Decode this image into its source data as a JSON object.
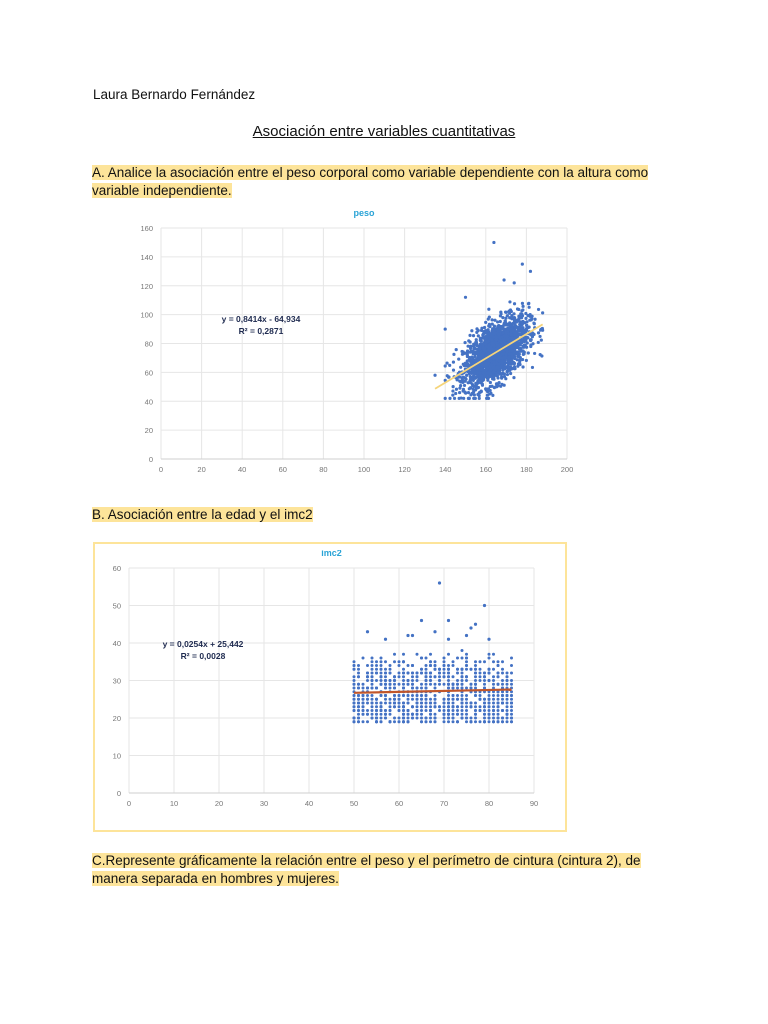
{
  "document": {
    "author": "Laura Bernardo Fernández",
    "title": "Asociación entre variables cuantitativas",
    "questions": {
      "a": "A. Analice la asociación entre el peso corporal como variable dependiente con la altura como variable independiente.",
      "b": "B. Asociación entre la edad y el imc2",
      "c": "C.Represente gráficamente la relación entre el peso y el perímetro de cintura (cintura 2), de manera separada en hombres y mujeres."
    }
  },
  "colors": {
    "highlight": "#fde49a",
    "point": "#4472c4",
    "trend_a": "#f5d47a",
    "trend_b": "#c0562b",
    "chart_title": "#29a3d6",
    "grid": "#e6e6e6",
    "equation": "#1f2b50"
  },
  "chart_data": [
    {
      "type": "scatter",
      "title": "peso",
      "xlabel": "",
      "ylabel": "",
      "xlim": [
        0,
        200
      ],
      "ylim": [
        0,
        160
      ],
      "x_ticks": [
        "0",
        "20",
        "40",
        "60",
        "80",
        "100",
        "120",
        "140",
        "160",
        "180",
        "200"
      ],
      "y_ticks": [
        "0",
        "20",
        "40",
        "60",
        "80",
        "100",
        "120",
        "140",
        "160"
      ],
      "grid": true,
      "legend": "none",
      "trendline": {
        "slope": 0.8414,
        "intercept": -64.934,
        "x_range": [
          135,
          188
        ],
        "equation": "y = 0,8414x - 64,934",
        "r2": "R² = 0,2871"
      },
      "point_cloud": {
        "x_center": 165,
        "x_sd": 8,
        "x_range": [
          135,
          188
        ],
        "y_noise_sd": 10,
        "y_range": [
          42,
          120
        ],
        "n": 1800
      },
      "outliers": [
        [
          164,
          150
        ],
        [
          178,
          135
        ],
        [
          182,
          130
        ],
        [
          169,
          124
        ],
        [
          174,
          122
        ],
        [
          135,
          58
        ],
        [
          140,
          90
        ],
        [
          150,
          112
        ]
      ]
    },
    {
      "type": "scatter",
      "title": "imc2",
      "xlabel": "",
      "ylabel": "",
      "xlim": [
        0,
        90
      ],
      "ylim": [
        0,
        60
      ],
      "x_ticks": [
        "0",
        "10",
        "20",
        "30",
        "40",
        "50",
        "60",
        "70",
        "80",
        "90"
      ],
      "y_ticks": [
        "0",
        "10",
        "20",
        "30",
        "40",
        "50",
        "60"
      ],
      "grid": true,
      "legend": "none",
      "trendline": {
        "slope": 0.0254,
        "intercept": 25.442,
        "x_range": [
          50,
          85
        ],
        "equation": "y = 0,0254x + 25,442",
        "r2": "R² = 0,0028"
      },
      "point_cloud": {
        "x_range": [
          50,
          85
        ],
        "x_step": 1,
        "y_range": [
          19,
          38
        ],
        "y_step": 1,
        "n": 900
      },
      "outliers": [
        [
          69,
          56
        ],
        [
          79,
          50
        ],
        [
          65,
          46
        ],
        [
          71,
          46
        ],
        [
          77,
          45
        ],
        [
          76,
          44
        ],
        [
          53,
          43
        ],
        [
          68,
          43
        ],
        [
          75,
          42
        ],
        [
          62,
          42
        ],
        [
          63,
          42
        ],
        [
          80,
          41
        ],
        [
          57,
          41
        ],
        [
          71,
          41
        ]
      ]
    }
  ]
}
